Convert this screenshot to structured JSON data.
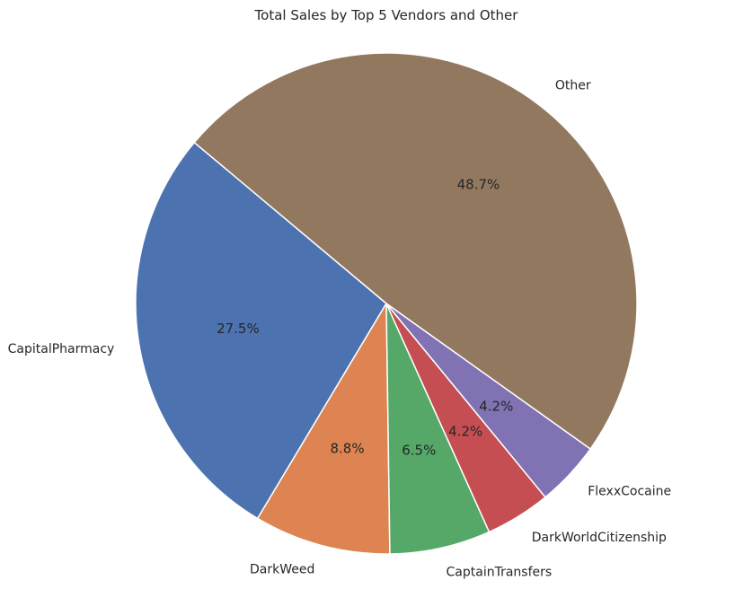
{
  "chart_data": {
    "type": "pie",
    "title": "Total Sales by Top 5 Vendors and Other",
    "start_angle_deg": 140,
    "direction": "counterclockwise",
    "slices": [
      {
        "label": "CapitalPharmacy",
        "percent": 27.5,
        "pct_label": "27.5%",
        "color": "#4C72B0"
      },
      {
        "label": "DarkWeed",
        "percent": 8.8,
        "pct_label": "8.8%",
        "color": "#DD8452"
      },
      {
        "label": "CaptainTransfers",
        "percent": 6.5,
        "pct_label": "6.5%",
        "color": "#55A868"
      },
      {
        "label": "DarkWorldCitizenship",
        "percent": 4.2,
        "pct_label": "4.2%",
        "color": "#C44E52"
      },
      {
        "label": "FlexxCocaine",
        "percent": 4.2,
        "pct_label": "4.2%",
        "color": "#8172B3"
      },
      {
        "label": "Other",
        "percent": 48.7,
        "pct_label": "48.7%",
        "color": "#937860"
      }
    ]
  }
}
